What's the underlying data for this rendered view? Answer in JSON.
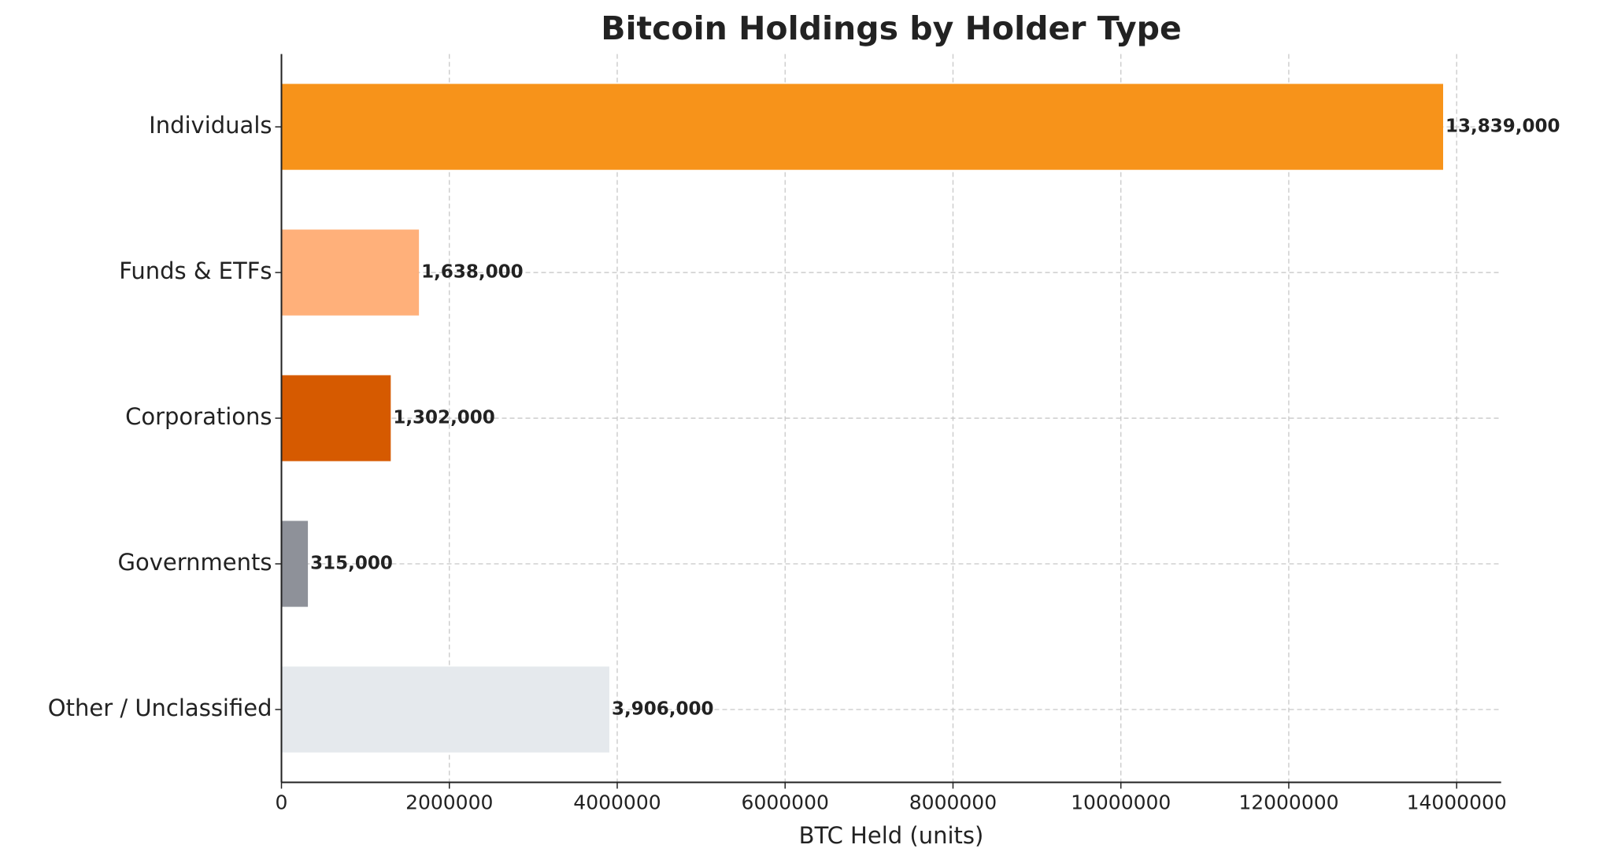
{
  "chart_data": {
    "type": "barh",
    "title": "Bitcoin Holdings by Holder Type",
    "x_label": "BTC Held (units)",
    "categories": [
      "Individuals",
      "Funds & ETFs",
      "Corporations",
      "Governments",
      "Other / Unclassified"
    ],
    "values": [
      13839000,
      1638000,
      1302000,
      315000,
      3906000
    ],
    "value_labels": [
      "13,839,000",
      "1,638,000",
      "1,302,000",
      "315,000",
      "3,906,000"
    ],
    "colors": [
      "#f7931a",
      "#ffb07a",
      "#d65a00",
      "#8e9199",
      "#e5e9ed"
    ],
    "xlim": [
      0,
      14530000
    ],
    "xticks": [
      0,
      2000000,
      4000000,
      6000000,
      8000000,
      10000000,
      12000000,
      14000000
    ],
    "grid": true
  }
}
